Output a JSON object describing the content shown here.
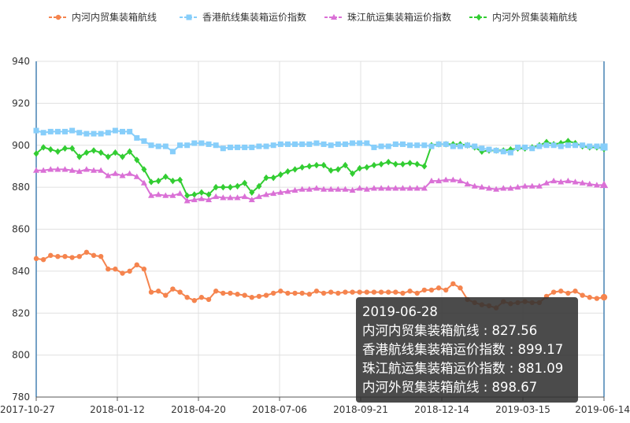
{
  "chart_data": {
    "type": "line",
    "categories_labeled": [
      "2017-10-27",
      "2018-01-12",
      "2018-04-20",
      "2018-07-06",
      "2018-09-21",
      "2018-12-14",
      "2019-03-15",
      "2019-06-14"
    ],
    "ylim": [
      780,
      940
    ],
    "yticks": [
      780,
      800,
      820,
      840,
      860,
      880,
      900,
      920,
      940
    ],
    "grid": true,
    "legend_position": "top",
    "series": [
      {
        "name": "内河内贸集装箱航线",
        "color": "#f5844e",
        "marker": "circle",
        "values": [
          846,
          845.5,
          847.5,
          847,
          847,
          846.5,
          847,
          849,
          847.5,
          847,
          841,
          841,
          839,
          840,
          843,
          841,
          830,
          830.5,
          828.5,
          831.5,
          830,
          827.5,
          826,
          827.5,
          826.5,
          830.5,
          829.5,
          829.5,
          829,
          828.5,
          827.5,
          828,
          828.5,
          829.5,
          830.5,
          829.5,
          829.5,
          829.5,
          829,
          830.5,
          829.5,
          830,
          829.5,
          830,
          830,
          830,
          830,
          830,
          830,
          830,
          830,
          829.5,
          830.5,
          829.5,
          831,
          831,
          832,
          831,
          834,
          832,
          826.5,
          825,
          824,
          823.5,
          822.5,
          825.5,
          824.5,
          825,
          825.5,
          825,
          825,
          828,
          830,
          830.5,
          829.5,
          830.5,
          828.5,
          827.5,
          827,
          827.56
        ]
      },
      {
        "name": "香港航线集装箱运价指数",
        "color": "#87cefa",
        "marker": "square",
        "values": [
          907,
          906,
          906.5,
          906.5,
          906.5,
          907,
          906,
          905.5,
          905.5,
          905.5,
          906,
          907,
          906.5,
          906.5,
          903.5,
          902,
          900,
          899.5,
          899.5,
          897,
          900,
          900,
          901,
          901,
          900.5,
          900,
          898.5,
          899,
          899,
          899,
          899,
          899.5,
          899.5,
          900,
          900.5,
          900.5,
          900.5,
          900.5,
          900.5,
          901,
          900.5,
          900,
          900.5,
          900.5,
          901,
          901,
          901,
          899,
          899.5,
          899.5,
          900.5,
          900.5,
          900,
          900,
          900,
          899.5,
          900.5,
          900.5,
          899.5,
          899.5,
          900,
          899.5,
          898.5,
          898,
          897.5,
          897,
          896.5,
          899,
          899,
          898.5,
          899.5,
          900,
          900,
          899.5,
          900,
          900,
          900,
          899.5,
          899.5,
          899.17
        ]
      },
      {
        "name": "珠江航运集装箱运价指数",
        "color": "#da70d6",
        "marker": "triangle",
        "values": [
          888,
          888,
          888.5,
          888.5,
          888.5,
          888,
          887.5,
          888.5,
          888,
          888,
          885.5,
          886.5,
          885.5,
          886.5,
          885,
          882,
          876,
          876.5,
          876,
          876,
          877,
          873.5,
          874,
          874.5,
          874,
          875.5,
          875,
          875,
          875,
          875.5,
          874,
          875.5,
          876.5,
          877,
          877.5,
          878,
          878.5,
          879,
          879,
          879.5,
          879,
          879,
          879,
          879,
          878.5,
          879.5,
          879,
          879.5,
          879.5,
          879.5,
          879.5,
          879.5,
          879.5,
          879.5,
          879.5,
          883,
          883,
          883.5,
          883.5,
          883,
          881.5,
          880.5,
          880,
          879.5,
          879,
          879.5,
          879.5,
          880,
          880.5,
          880.5,
          880.5,
          882,
          883,
          882.5,
          883,
          882.5,
          882,
          881.5,
          881,
          881.09
        ]
      },
      {
        "name": "内河外贸集装箱航线",
        "color": "#32cd32",
        "marker": "diamond",
        "values": [
          896,
          899,
          898,
          897,
          898.5,
          898.5,
          894.5,
          896.5,
          897.5,
          896.5,
          894.5,
          896.5,
          894.5,
          897,
          893,
          888.5,
          882.5,
          883,
          885,
          883,
          883.5,
          876,
          876.5,
          877.5,
          876.5,
          880,
          880,
          880,
          880.5,
          882,
          877.5,
          880.5,
          884.5,
          884.5,
          886,
          887.5,
          888.5,
          889.5,
          890,
          890.5,
          890.5,
          888,
          888.5,
          890.5,
          886.5,
          889,
          889.5,
          890.5,
          891,
          892,
          891,
          891,
          891.5,
          891,
          890,
          900,
          900.5,
          900.5,
          900.5,
          900.5,
          900,
          899,
          897,
          897.5,
          897.5,
          897.5,
          898,
          898.5,
          898.5,
          899,
          900,
          901.5,
          900.5,
          901,
          902,
          901,
          899.5,
          899,
          899,
          898.67
        ]
      }
    ]
  },
  "tooltip": {
    "date": "2019-06-28",
    "rows": [
      "内河内贸集装箱航线 : 827.56",
      "香港航线集装箱运价指数 : 899.17",
      "珠江航运集装箱运价指数 : 881.09",
      "内河外贸集装箱航线 : 898.67"
    ]
  }
}
